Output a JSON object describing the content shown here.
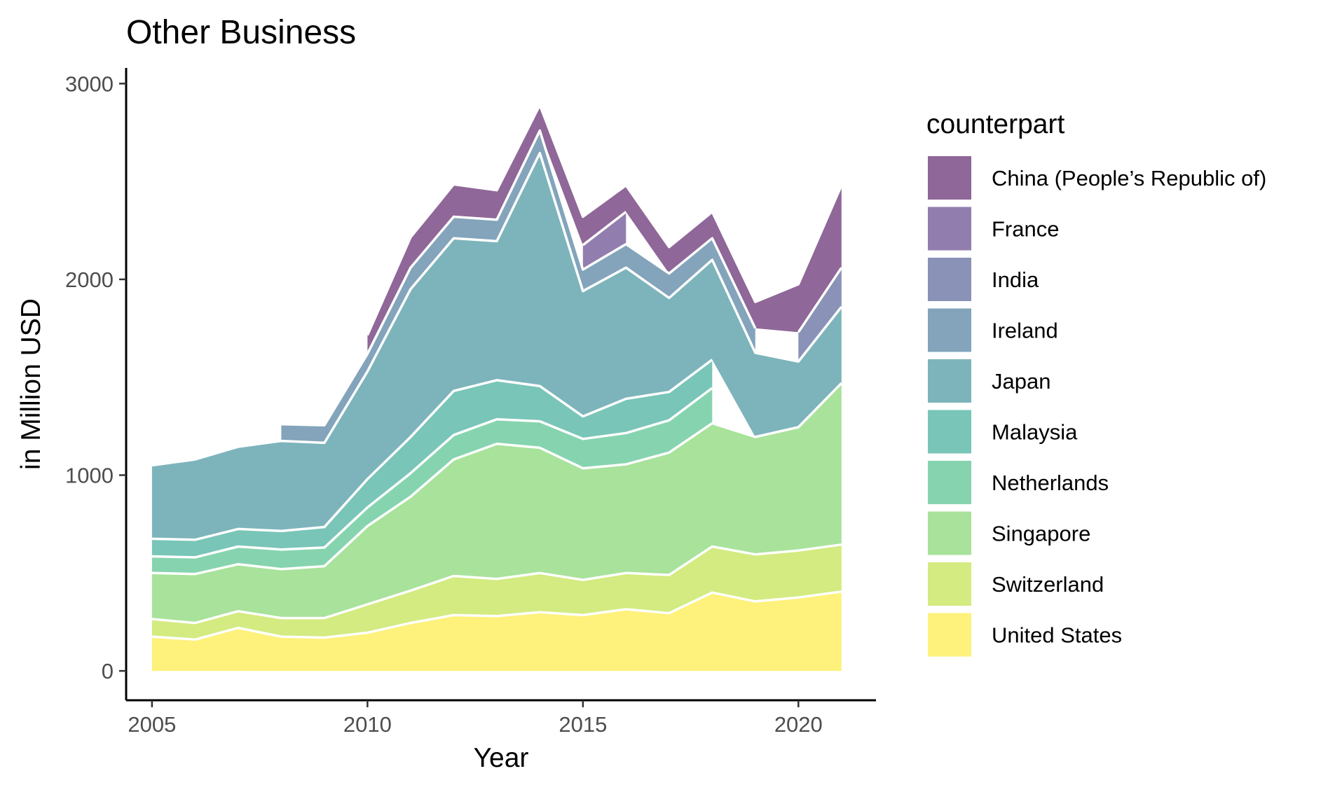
{
  "chart_data": {
    "type": "area",
    "stacked": true,
    "title": "Other Business",
    "xlabel": "Year",
    "ylabel": "in Million USD",
    "xlim": [
      2004.4,
      2021.8
    ],
    "ylim": [
      -150,
      3080
    ],
    "x_ticks": [
      2005,
      2010,
      2015,
      2020
    ],
    "y_ticks": [
      0,
      1000,
      2000,
      3000
    ],
    "grid": false,
    "legend_title": "counterpart",
    "legend_position": "right",
    "x": [
      2005,
      2006,
      2007,
      2008,
      2009,
      2010,
      2011,
      2012,
      2013,
      2014,
      2015,
      2016,
      2017,
      2018,
      2019,
      2020,
      2021
    ],
    "series": [
      {
        "name": "United States",
        "color": "#FDE725",
        "values": [
          175,
          160,
          220,
          175,
          170,
          195,
          245,
          285,
          280,
          300,
          285,
          315,
          295,
          400,
          355,
          375,
          405
        ]
      },
      {
        "name": "Switzerland",
        "color": "#B5DE2B",
        "values": [
          90,
          85,
          85,
          95,
          100,
          145,
          165,
          200,
          190,
          200,
          180,
          185,
          195,
          235,
          240,
          240,
          240
        ]
      },
      {
        "name": "Singapore",
        "color": "#6ECE58",
        "values": [
          235,
          250,
          240,
          250,
          265,
          400,
          480,
          595,
          690,
          640,
          570,
          555,
          625,
          630,
          600,
          630,
          825
        ]
      },
      {
        "name": "Netherlands",
        "color": "#35B779",
        "values": [
          85,
          85,
          90,
          100,
          95,
          95,
          120,
          125,
          125,
          135,
          150,
          160,
          165,
          180,
          null,
          null,
          null
        ]
      },
      {
        "name": "Malaysia",
        "color": "#1F9E89",
        "values": [
          90,
          90,
          90,
          95,
          105,
          145,
          185,
          225,
          200,
          180,
          115,
          175,
          145,
          145,
          null,
          null,
          null
        ]
      },
      {
        "name": "Japan",
        "color": "#26828E",
        "values": [
          375,
          410,
          420,
          460,
          430,
          550,
          755,
          780,
          710,
          1190,
          640,
          670,
          480,
          510,
          430,
          335,
          390
        ]
      },
      {
        "name": "Ireland",
        "color": "#31688E",
        "values": [
          null,
          null,
          null,
          85,
          90,
          90,
          110,
          110,
          110,
          115,
          110,
          120,
          125,
          110,
          125,
          null,
          null
        ]
      },
      {
        "name": "India",
        "color": "#3E4A89",
        "values": [
          null,
          null,
          null,
          null,
          null,
          null,
          null,
          null,
          null,
          null,
          null,
          null,
          null,
          null,
          null,
          150,
          200
        ]
      },
      {
        "name": "France",
        "color": "#482878",
        "values": [
          null,
          null,
          null,
          null,
          null,
          null,
          null,
          null,
          null,
          null,
          125,
          165,
          null,
          null,
          null,
          null,
          null
        ]
      },
      {
        "name": "China (People’s Republic of)",
        "color": "#440154",
        "values": [
          null,
          null,
          null,
          null,
          null,
          95,
          155,
          165,
          150,
          130,
          145,
          135,
          135,
          135,
          135,
          245,
          420
        ]
      }
    ]
  }
}
